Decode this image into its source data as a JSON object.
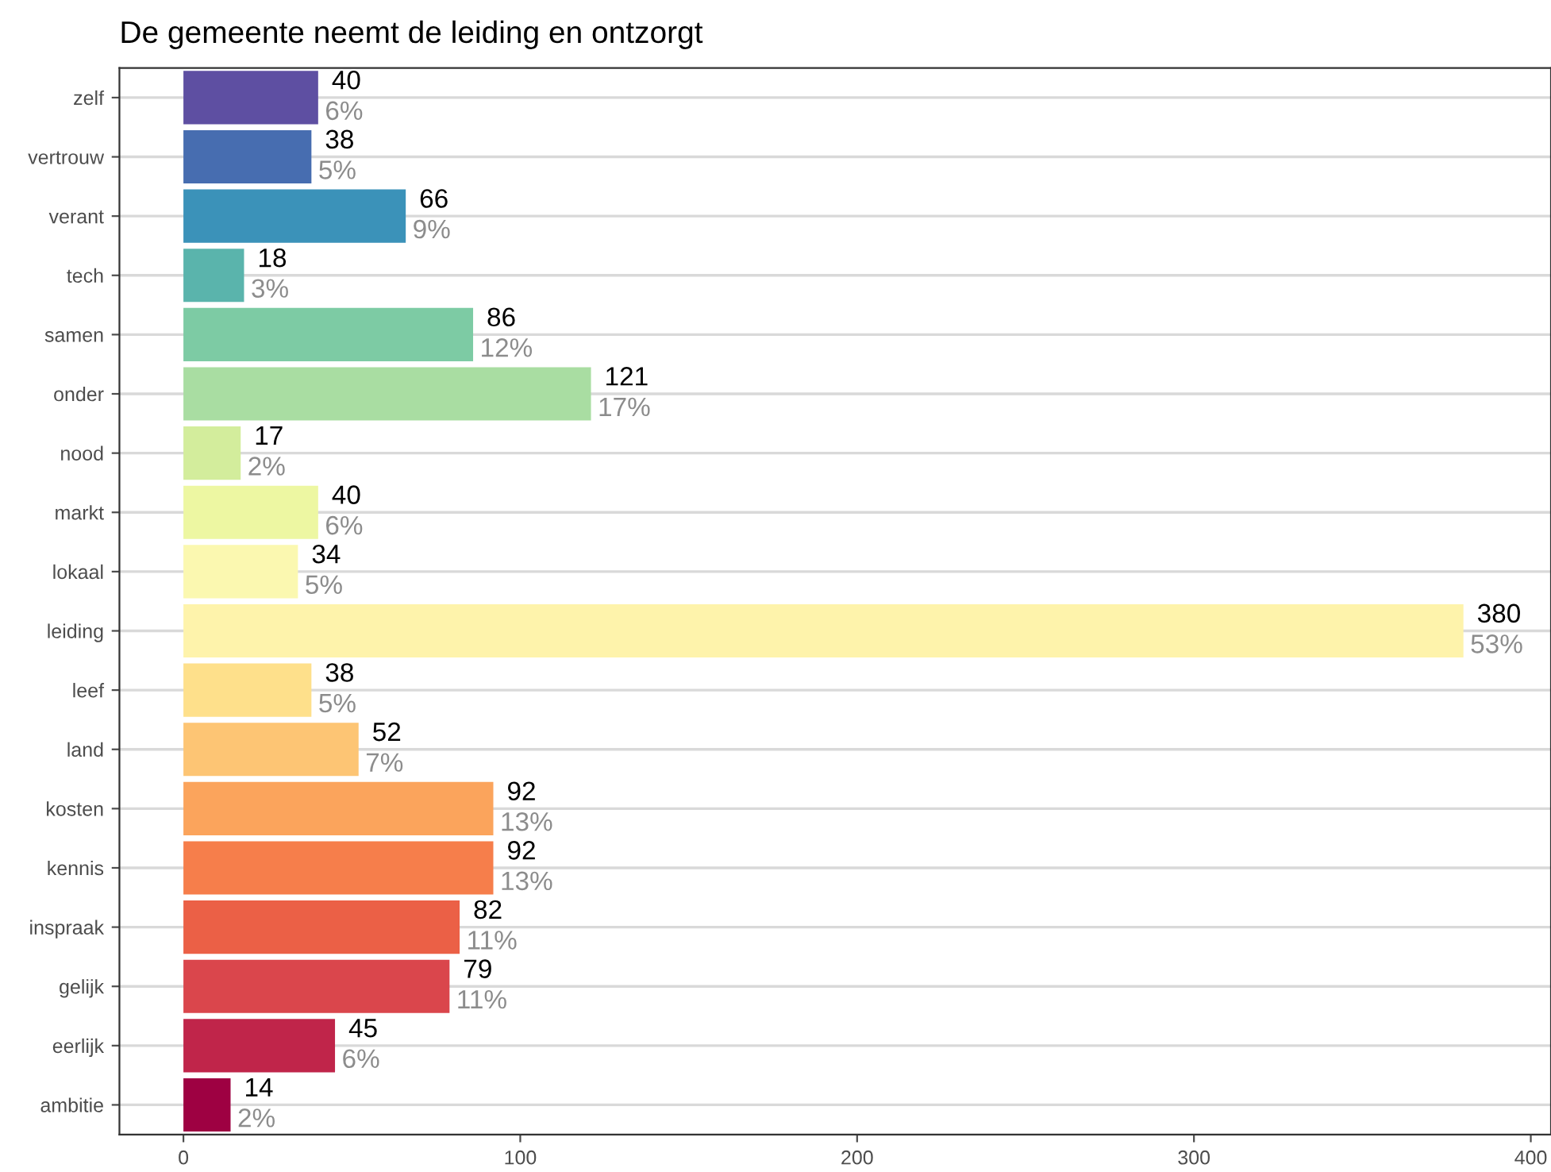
{
  "chart_data": {
    "type": "bar",
    "orientation": "horizontal",
    "title": "De gemeente neemt de leiding en ontzorgt",
    "categories": [
      "zelf",
      "vertrouw",
      "verant",
      "tech",
      "samen",
      "onder",
      "nood",
      "markt",
      "lokaal",
      "leiding",
      "leef",
      "land",
      "kosten",
      "kennis",
      "inspraak",
      "gelijk",
      "eerlijk",
      "ambitie"
    ],
    "values": [
      40,
      38,
      66,
      18,
      86,
      121,
      17,
      40,
      34,
      380,
      38,
      52,
      92,
      92,
      82,
      79,
      45,
      14
    ],
    "colors": [
      "#5E4FA2",
      "#476DB0",
      "#3B92B9",
      "#5AB4AC",
      "#7DCBA4",
      "#A9DDA2",
      "#D3ED9C",
      "#EDF7A2",
      "#FBF8B0",
      "#FEF3AB",
      "#FEE08B",
      "#FDC574",
      "#FBA45C",
      "#F67E4B",
      "#EB6046",
      "#DA464C",
      "#C0254A",
      "#9E0142"
    ],
    "data_labels": true,
    "annotations": [
      {
        "text": "6%",
        "x": 40,
        "y": "zelf"
      },
      {
        "text": "5%",
        "x": 38,
        "y": "vertrouw"
      },
      {
        "text": "9%",
        "x": 66,
        "y": "verant"
      },
      {
        "text": "3%",
        "x": 18,
        "y": "tech"
      },
      {
        "text": "12%",
        "x": 86,
        "y": "samen"
      },
      {
        "text": "17%",
        "x": 121,
        "y": "onder"
      },
      {
        "text": "2%",
        "x": 17,
        "y": "nood"
      },
      {
        "text": "6%",
        "x": 40,
        "y": "markt"
      },
      {
        "text": "5%",
        "x": 34,
        "y": "lokaal"
      },
      {
        "text": "53%",
        "x": 380,
        "y": "leiding"
      },
      {
        "text": "5%",
        "x": 38,
        "y": "leef"
      },
      {
        "text": "7%",
        "x": 52,
        "y": "land"
      },
      {
        "text": "13%",
        "x": 92,
        "y": "kosten"
      },
      {
        "text": "13%",
        "x": 92,
        "y": "kennis"
      },
      {
        "text": "11%",
        "x": 82,
        "y": "inspraak"
      },
      {
        "text": "11%",
        "x": 79,
        "y": "gelijk"
      },
      {
        "text": "6%",
        "x": 45,
        "y": "eerlijk"
      },
      {
        "text": "2%",
        "x": 14,
        "y": "ambitie"
      }
    ],
    "xlim": [
      -19,
      406
    ],
    "xticks": [
      0,
      100,
      200,
      300,
      400
    ],
    "grid": "y"
  }
}
